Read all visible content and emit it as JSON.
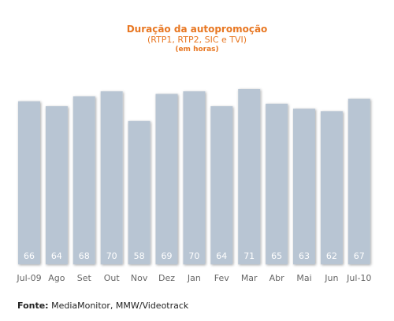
{
  "chart_data": {
    "type": "bar",
    "title": "Duração da autopromoção",
    "subtitle": "(RTP1, RTP2, SIC e TVI)",
    "unit_note": "(em horas)",
    "categories": [
      "Jul-09",
      "Ago",
      "Set",
      "Out",
      "Nov",
      "Dez",
      "Jan",
      "Fev",
      "Mar",
      "Abr",
      "Mai",
      "Jun",
      "Jul-10"
    ],
    "values": [
      66,
      64,
      68,
      70,
      58,
      69,
      70,
      64,
      71,
      65,
      63,
      62,
      67
    ],
    "ylim": [
      0,
      71
    ],
    "bar_color": "#b8c5d3",
    "label_color": "#ffffff",
    "grid": false,
    "legend": "none"
  },
  "source": {
    "label": "Fonte:",
    "text": " MediaMonitor, MMW/Videotrack"
  }
}
